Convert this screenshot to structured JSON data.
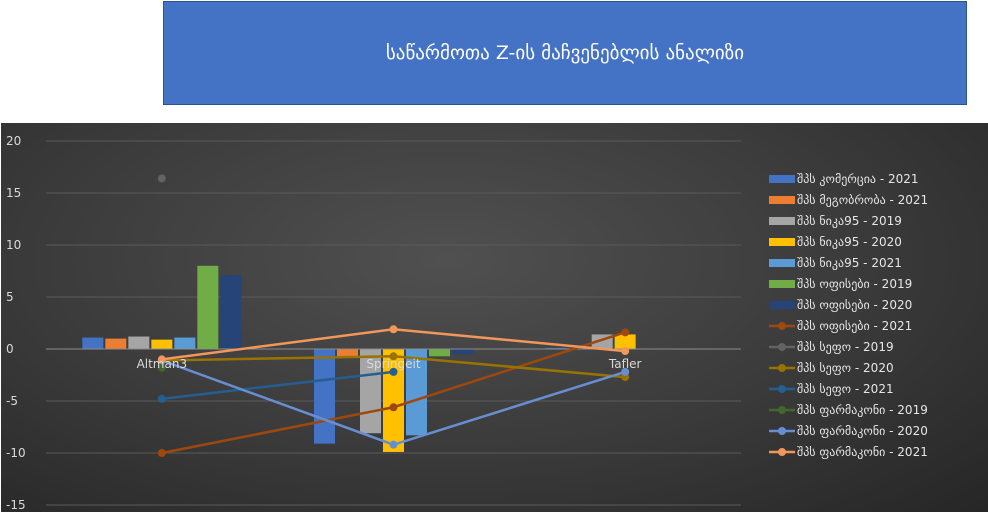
{
  "header": {
    "title": "საწარმოთა Z-ის მაჩვენებლის ანალიზი"
  },
  "chart_data": {
    "type": "bar",
    "title": "",
    "xlabel": "",
    "ylabel": "",
    "ylim": [
      -15,
      20
    ],
    "yticks": [
      20,
      15,
      10,
      5,
      0,
      -5,
      -10,
      -15
    ],
    "categories": [
      "Altman3",
      "Springeit",
      "Tafler"
    ],
    "grid": true,
    "legend_position": "right",
    "series": [
      {
        "name": "შპს კომერცია - 2021",
        "kind": "bar",
        "color": "#4472c4",
        "values": [
          1.1,
          -9.1,
          0.1
        ]
      },
      {
        "name": "შპს მეგობრობა - 2021",
        "kind": "bar",
        "color": "#ed7d31",
        "values": [
          1.0,
          -0.8,
          0.0
        ]
      },
      {
        "name": "შპს ნიკა95 - 2019",
        "kind": "bar",
        "color": "#a5a5a5",
        "values": [
          1.2,
          -8.1,
          1.4
        ]
      },
      {
        "name": "შპს ნიკა95 - 2020",
        "kind": "bar",
        "color": "#ffc000",
        "values": [
          0.9,
          -9.9,
          1.4
        ]
      },
      {
        "name": "შპს ნიკა95 - 2021",
        "kind": "bar",
        "color": "#5b9bd5",
        "values": [
          1.1,
          -8.3,
          0.0
        ]
      },
      {
        "name": "შპს ოფისები - 2019",
        "kind": "bar",
        "color": "#70ad47",
        "values": [
          8.0,
          -0.7,
          0.0
        ]
      },
      {
        "name": "შპს ოფისები - 2020",
        "kind": "bar",
        "color": "#264478",
        "values": [
          7.1,
          -0.5,
          0.0
        ]
      },
      {
        "name": "შპს ოფისები - 2021",
        "kind": "line",
        "color": "#9e480e",
        "values": [
          -10.0,
          -5.6,
          1.6
        ]
      },
      {
        "name": "შპს სეფო - 2019",
        "kind": "line",
        "color": "#636363",
        "values": [
          16.4,
          null,
          null
        ]
      },
      {
        "name": "შპს სეფო - 2020",
        "kind": "line",
        "color": "#997300",
        "values": [
          -1.1,
          -0.7,
          -2.7
        ]
      },
      {
        "name": "შპს სეფო - 2021",
        "kind": "line",
        "color": "#255e91",
        "values": [
          -4.8,
          -2.2,
          null
        ]
      },
      {
        "name": "შპს ფარმაკონი - 2019",
        "kind": "line",
        "color": "#43682b",
        "values": [
          -1.8,
          null,
          null
        ]
      },
      {
        "name": "შპს ფარმაკონი - 2020",
        "kind": "line",
        "color": "#698ed0",
        "values": [
          -1.1,
          -9.2,
          -2.2
        ]
      },
      {
        "name": "შპს ფარმაკონი - 2021",
        "kind": "line",
        "color": "#f1975a",
        "values": [
          -1.0,
          1.9,
          -0.2
        ]
      }
    ]
  }
}
